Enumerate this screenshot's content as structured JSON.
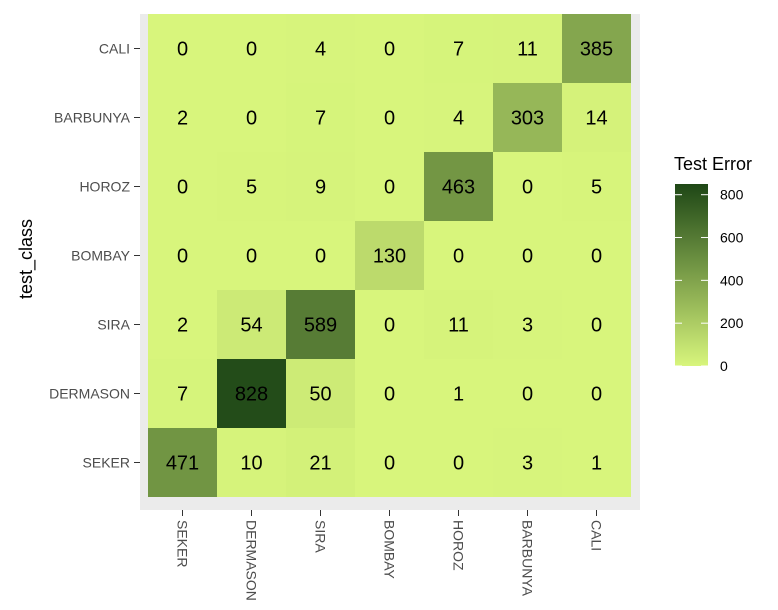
{
  "chart_data": {
    "type": "heatmap",
    "title": "",
    "xlabel": "",
    "ylabel": "test_class",
    "x_categories": [
      "SEKER",
      "DERMASON",
      "SIRA",
      "BOMBAY",
      "HOROZ",
      "BARBUNYA",
      "CALI"
    ],
    "y_categories": [
      "SEKER",
      "DERMASON",
      "SIRA",
      "BOMBAY",
      "HOROZ",
      "BARBUNYA",
      "CALI"
    ],
    "values": [
      [
        471,
        10,
        21,
        0,
        0,
        3,
        1
      ],
      [
        7,
        828,
        50,
        0,
        1,
        0,
        0
      ],
      [
        2,
        54,
        589,
        0,
        11,
        3,
        0
      ],
      [
        0,
        0,
        0,
        130,
        0,
        0,
        0
      ],
      [
        0,
        5,
        9,
        0,
        463,
        0,
        5
      ],
      [
        2,
        0,
        7,
        0,
        4,
        303,
        14
      ],
      [
        0,
        0,
        4,
        0,
        7,
        11,
        385
      ]
    ],
    "legend": {
      "title": "Test Error",
      "ticks": [
        0,
        200,
        400,
        600,
        800
      ],
      "range": [
        0,
        850
      ],
      "color_low": "#d8f57c",
      "color_high": "#1e4716",
      "placement": "right"
    },
    "panel_background": "#ebebeb"
  }
}
